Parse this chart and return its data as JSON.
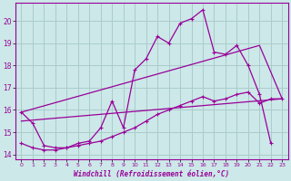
{
  "title": "",
  "xlabel": "Windchill (Refroidissement éolien,°C)",
  "background_color": "#cce8e8",
  "grid_color": "#aacccc",
  "line_color": "#990099",
  "xlim": [
    -0.5,
    23.5
  ],
  "ylim": [
    13.8,
    20.8
  ],
  "yticks": [
    14,
    15,
    16,
    17,
    18,
    19,
    20
  ],
  "xticks": [
    0,
    1,
    2,
    3,
    4,
    5,
    6,
    7,
    8,
    9,
    10,
    11,
    12,
    13,
    14,
    15,
    16,
    17,
    18,
    19,
    20,
    21,
    22,
    23
  ],
  "series1_x": [
    0,
    1,
    2,
    3,
    4,
    5,
    6,
    7,
    8,
    9,
    10,
    11,
    12,
    13,
    14,
    15,
    16,
    17,
    18,
    19,
    20,
    21,
    22,
    23
  ],
  "series1_y": [
    15.9,
    15.4,
    14.4,
    14.3,
    14.3,
    14.5,
    14.6,
    15.2,
    16.4,
    15.2,
    17.8,
    18.3,
    19.3,
    19.0,
    19.9,
    20.1,
    20.5,
    18.6,
    18.5,
    18.9,
    18.0,
    16.7,
    14.5,
    null
  ],
  "series2_x": [
    0,
    1,
    2,
    3,
    4,
    5,
    6,
    7,
    8,
    9,
    10,
    11,
    12,
    13,
    14,
    15,
    16,
    17,
    18,
    19,
    20,
    21,
    22,
    23
  ],
  "series2_y": [
    14.5,
    14.3,
    14.2,
    14.2,
    14.3,
    14.4,
    14.5,
    14.6,
    14.8,
    15.0,
    15.2,
    15.5,
    15.8,
    16.0,
    16.2,
    16.4,
    16.6,
    16.4,
    16.5,
    16.7,
    16.8,
    16.3,
    16.5,
    16.5
  ],
  "series3_x": [
    0,
    23
  ],
  "series3_y": [
    15.5,
    16.5
  ],
  "series4_x": [
    0,
    21,
    23
  ],
  "series4_y": [
    15.9,
    18.9,
    16.5
  ]
}
